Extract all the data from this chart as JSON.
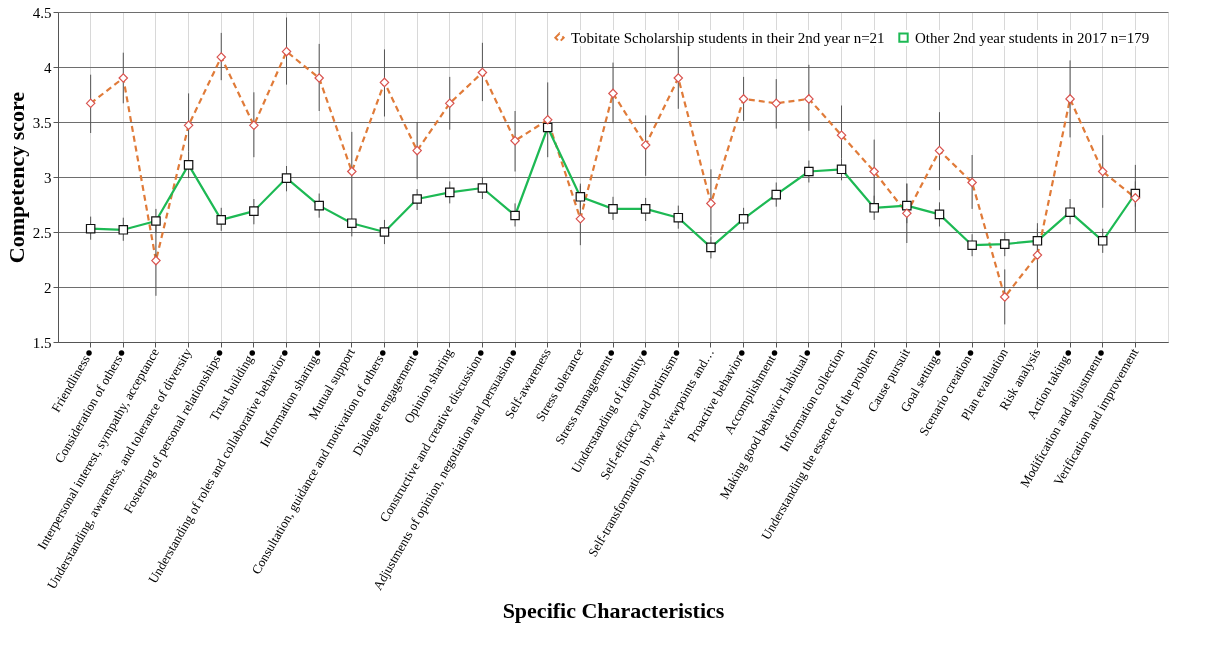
{
  "chart_data": {
    "type": "line",
    "xlabel": "Specific Characteristics",
    "ylabel": "Competency score",
    "categories": [
      "Friendliness●",
      "Consideration of others●",
      "Interpersonal interest, sympathy, acceptance",
      "Understanding, awareness, and tolerance of diversity",
      "Fostering of personal relationships●",
      "Trust building●",
      "Understanding of roles and collaborative behavior●",
      "Information sharing●",
      "Mutual support",
      "Consultation, guidance and motivation of others●",
      "Dialogue engagement●",
      "Opinion sharing",
      "Constructive and creative discussion●",
      "Adjustments of opinion, negotiation and persuasion●",
      "Self-awareness",
      "Stress tolerance",
      "Stress management●",
      "Understanding of identity●",
      "Self-efficacy and optimism●",
      "Self-transformation by new viewpoints and…",
      "Proactive behavior●",
      "Accomplishment●",
      "Making good behavior habitual●",
      "Information collection",
      "Understanding the essence of the problem",
      "Cause pursuit",
      "Goal setting●",
      "Scenario creation●",
      "Plan evaluation",
      "Risk analysis",
      "Action taking●",
      "Modification and adjustment●",
      "Verification and improvement"
    ],
    "series": [
      {
        "name": "Tobitate Scholarship students in their 2nd year n=21",
        "color": "#e07b39",
        "marker": "diamond",
        "line_style": "dashed",
        "values": [
          3.67,
          3.9,
          2.24,
          3.47,
          4.09,
          3.47,
          4.14,
          3.9,
          3.05,
          3.86,
          3.24,
          3.67,
          3.95,
          3.33,
          3.52,
          2.62,
          3.76,
          3.29,
          3.9,
          2.76,
          3.71,
          3.67,
          3.71,
          3.38,
          3.05,
          2.67,
          3.24,
          2.95,
          1.91,
          2.29,
          3.71,
          3.05,
          2.81
        ],
        "errors": [
          [
            3.4,
            3.93
          ],
          [
            3.67,
            4.13
          ],
          [
            1.92,
            2.57
          ],
          [
            3.23,
            3.76
          ],
          [
            3.88,
            4.31
          ],
          [
            3.18,
            3.77
          ],
          [
            3.84,
            4.45
          ],
          [
            3.6,
            4.21
          ],
          [
            2.7,
            3.41
          ],
          [
            3.55,
            4.16
          ],
          [
            2.98,
            3.5
          ],
          [
            3.43,
            3.91
          ],
          [
            3.69,
            4.22
          ],
          [
            3.05,
            3.6
          ],
          null,
          [
            2.38,
            2.94
          ],
          [
            3.49,
            4.04
          ],
          [
            3.01,
            3.56
          ],
          [
            3.62,
            4.19
          ],
          [
            2.47,
            3.07
          ],
          [
            3.51,
            3.91
          ],
          [
            3.44,
            3.89
          ],
          [
            3.42,
            4.02
          ],
          [
            3.17,
            3.65
          ],
          [
            2.7,
            3.34
          ],
          [
            2.4,
            2.94
          ],
          [
            2.88,
            3.59
          ],
          [
            2.71,
            3.2
          ],
          [
            1.66,
            2.16
          ],
          [
            1.98,
            2.58
          ],
          [
            3.36,
            4.06
          ],
          [
            2.72,
            3.38
          ],
          [
            2.5,
            3.11
          ]
        ]
      },
      {
        "name": "Other 2nd year students in 2017 n=179",
        "color": "#1db954",
        "marker": "square",
        "line_style": "solid",
        "values": [
          2.53,
          2.52,
          2.6,
          3.11,
          2.61,
          2.69,
          2.99,
          2.74,
          2.58,
          2.5,
          2.8,
          2.86,
          2.9,
          2.65,
          3.45,
          2.82,
          2.71,
          2.71,
          2.63,
          2.36,
          2.62,
          2.84,
          3.05,
          3.07,
          2.72,
          2.74,
          2.66,
          2.38,
          2.39,
          2.42,
          2.68,
          2.42,
          2.85
        ],
        "errors": [
          [
            2.43,
            2.64
          ],
          [
            2.42,
            2.63
          ],
          [
            2.49,
            2.71
          ],
          [
            2.99,
            3.23
          ],
          [
            2.51,
            2.72
          ],
          [
            2.57,
            2.8
          ],
          [
            2.87,
            3.1
          ],
          [
            2.63,
            2.85
          ],
          [
            2.46,
            2.7
          ],
          [
            2.39,
            2.61
          ],
          [
            2.7,
            2.89
          ],
          [
            2.76,
            2.96
          ],
          [
            2.8,
            3.0
          ],
          [
            2.55,
            2.76
          ],
          [
            3.18,
            3.86
          ],
          [
            2.72,
            2.92
          ],
          [
            2.61,
            2.82
          ],
          [
            2.6,
            2.81
          ],
          [
            2.53,
            2.74
          ],
          [
            2.26,
            2.46
          ],
          [
            2.52,
            2.72
          ],
          [
            2.73,
            2.95
          ],
          [
            2.95,
            3.15
          ],
          [
            2.97,
            3.17
          ],
          [
            2.61,
            2.83
          ],
          [
            2.58,
            2.94
          ],
          [
            2.55,
            2.77
          ],
          [
            2.28,
            2.48
          ],
          [
            2.28,
            2.5
          ],
          [
            2.31,
            2.53
          ],
          [
            2.57,
            2.8
          ],
          [
            2.31,
            2.53
          ],
          [
            2.73,
            2.96
          ]
        ]
      }
    ],
    "ylim": [
      1.5,
      4.5
    ],
    "yticks": [
      1.5,
      2,
      2.5,
      3,
      3.5,
      4,
      4.5
    ],
    "grid": true,
    "legend": "top right"
  }
}
